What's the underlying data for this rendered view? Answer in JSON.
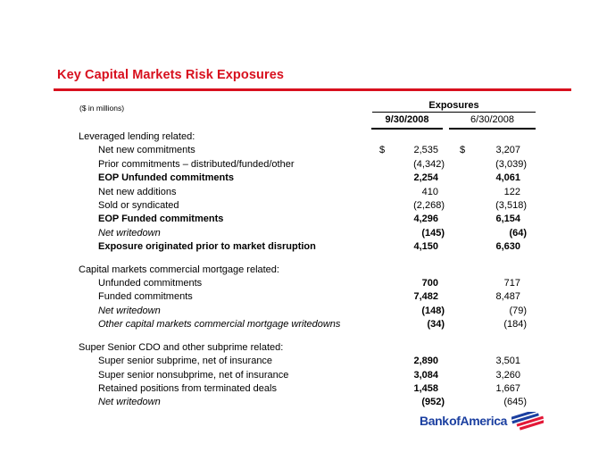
{
  "title": "Key Capital Markets Risk Exposures",
  "units_note": "($ in millions)",
  "table": {
    "group_header": "Exposures",
    "columns": [
      "9/30/2008",
      "6/30/2008"
    ],
    "currency_symbol": "$",
    "sections": [
      {
        "header": "Leveraged lending related:",
        "rows": [
          {
            "label": "Net new commitments",
            "dollar": true,
            "v1": "2,535",
            "v2": "3,207",
            "label_style": "regular",
            "v_bold": "none"
          },
          {
            "label": "Prior commitments – distributed/funded/other",
            "v1": "(4,342)",
            "v2": "(3,039)",
            "label_style": "regular",
            "v_bold": "none"
          },
          {
            "label": "EOP Unfunded commitments",
            "v1": "2,254",
            "v2": "4,061",
            "label_style": "bold",
            "v_bold": "both"
          },
          {
            "label": "Net new additions",
            "v1": "410",
            "v2": "122",
            "label_style": "regular",
            "v_bold": "none"
          },
          {
            "label": "Sold or syndicated",
            "v1": "(2,268)",
            "v2": "(3,518)",
            "label_style": "regular",
            "v_bold": "none"
          },
          {
            "label": "EOP Funded commitments",
            "v1": "4,296",
            "v2": "6,154",
            "label_style": "bold",
            "v_bold": "both"
          },
          {
            "label": "Net writedown",
            "v1": "(145)",
            "v2": "(64)",
            "label_style": "italic",
            "v_bold": "both"
          },
          {
            "label": "Exposure originated prior to market disruption",
            "v1": "4,150",
            "v2": "6,630",
            "label_style": "bold",
            "v_bold": "both"
          }
        ]
      },
      {
        "header": "Capital markets commercial mortgage related:",
        "rows": [
          {
            "label": "Unfunded commitments",
            "v1": "700",
            "v2": "717",
            "label_style": "regular",
            "v_bold": "first"
          },
          {
            "label": "Funded commitments",
            "v1": "7,482",
            "v2": "8,487",
            "label_style": "regular",
            "v_bold": "first"
          },
          {
            "label": "Net writedown",
            "v1": "(148)",
            "v2": "(79)",
            "label_style": "italic",
            "v_bold": "first"
          },
          {
            "label": "Other capital markets commercial mortgage writedowns",
            "v1": "(34)",
            "v2": "(184)",
            "label_style": "italic",
            "v_bold": "first"
          }
        ]
      },
      {
        "header": "Super Senior CDO and other subprime related:",
        "rows": [
          {
            "label": "Super senior subprime, net of insurance",
            "v1": "2,890",
            "v2": "3,501",
            "label_style": "regular",
            "v_bold": "first"
          },
          {
            "label": "Super senior nonsubprime, net of insurance",
            "v1": "3,084",
            "v2": "3,260",
            "label_style": "regular",
            "v_bold": "first"
          },
          {
            "label": "Retained positions from terminated deals",
            "v1": "1,458",
            "v2": "1,667",
            "label_style": "regular",
            "v_bold": "first"
          },
          {
            "label": "Net writedown",
            "v1": "(952)",
            "v2": "(645)",
            "label_style": "italic",
            "v_bold": "first"
          }
        ]
      }
    ]
  },
  "logo": {
    "text": "Bank of America"
  },
  "colors": {
    "accent_red": "#d8101e",
    "logo_blue": "#1b3fa0",
    "flag_blue": "#1b3fa0",
    "flag_red": "#e31837"
  }
}
